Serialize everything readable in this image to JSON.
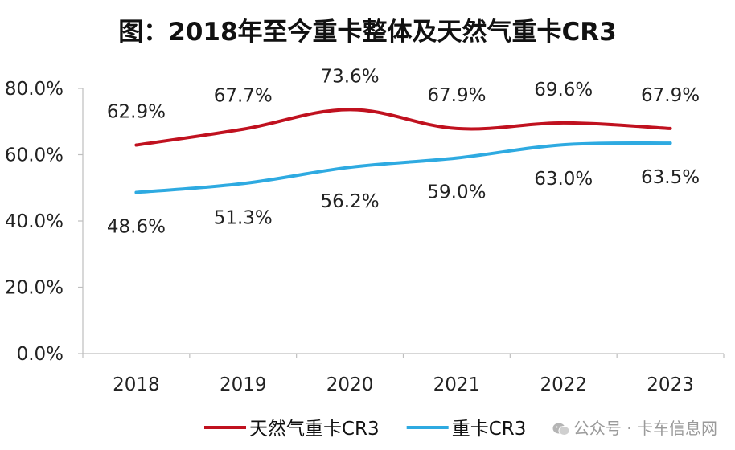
{
  "chart_data": {
    "type": "line",
    "title": "图：2018年至今重卡整体及天然气重卡CR3",
    "categories": [
      "2018",
      "2019",
      "2020",
      "2021",
      "2022",
      "2023"
    ],
    "ylim": [
      0,
      80
    ],
    "y_ticks": [
      "0.0%",
      "20.0%",
      "40.0%",
      "60.0%",
      "80.0%"
    ],
    "y_tick_values": [
      0,
      20,
      40,
      60,
      80
    ],
    "grid": false,
    "legend_position": "bottom",
    "series": [
      {
        "name": "天然气重卡CR3",
        "color": "#c0111f",
        "values": [
          62.9,
          67.7,
          73.6,
          67.9,
          69.6,
          67.9
        ],
        "labels": [
          "62.9%",
          "67.7%",
          "73.6%",
          "67.9%",
          "69.6%",
          "67.9%"
        ],
        "label_position": "above"
      },
      {
        "name": "重卡CR3",
        "color": "#2eaae1",
        "values": [
          48.6,
          51.3,
          56.2,
          59.0,
          63.0,
          63.5
        ],
        "labels": [
          "48.6%",
          "51.3%",
          "56.2%",
          "59.0%",
          "63.0%",
          "63.5%"
        ],
        "label_position": "below"
      }
    ]
  },
  "watermark": {
    "text": "公众号 · 卡车信息网",
    "icon": "wechat-icon"
  }
}
